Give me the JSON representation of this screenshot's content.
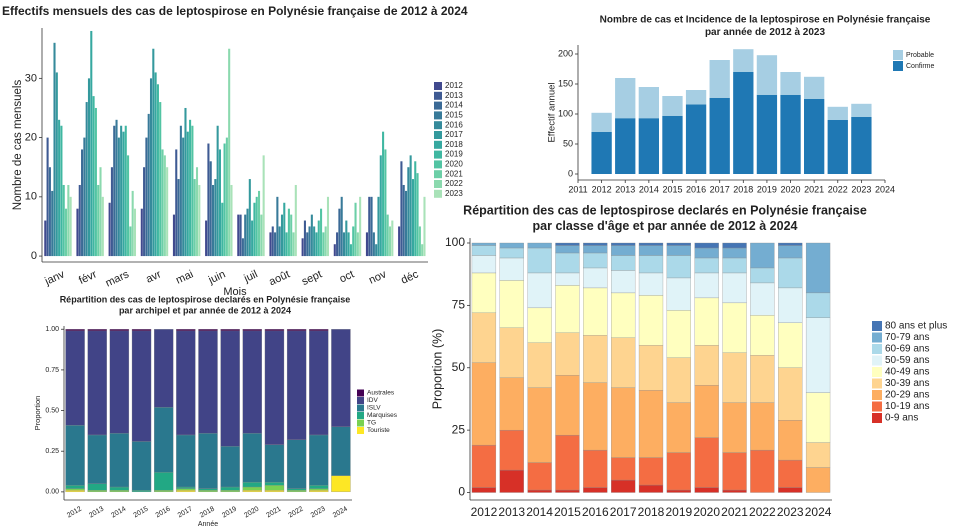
{
  "chart_data": [
    {
      "type": "bar",
      "title": "Effectifs mensuels des cas de leptospirose en Polynésie française de 2012 à 2024",
      "x_label": "Mois",
      "y_label": "Nombre de cas mensuels",
      "categories": [
        "janv",
        "févr",
        "mars",
        "avr",
        "mai",
        "juin",
        "juil",
        "août",
        "sept",
        "oct",
        "nov",
        "déc"
      ],
      "series": [
        {
          "name": "2012",
          "color": "#40498e",
          "values": [
            6,
            8,
            9,
            8,
            7,
            6,
            7,
            4,
            3,
            2,
            4,
            5
          ]
        },
        {
          "name": "2013",
          "color": "#3e5a93",
          "values": [
            20,
            12,
            15,
            15,
            18,
            19,
            7,
            5,
            6,
            4,
            10,
            16
          ]
        },
        {
          "name": "2014",
          "color": "#3b6a96",
          "values": [
            15,
            18,
            22,
            20,
            13,
            16,
            3,
            4,
            4,
            8,
            10,
            12
          ]
        },
        {
          "name": "2015",
          "color": "#387a99",
          "values": [
            11,
            20,
            23,
            24,
            22,
            12,
            7,
            10,
            5,
            10,
            4,
            11
          ]
        },
        {
          "name": "2016",
          "color": "#358a9b",
          "values": [
            36,
            26,
            20,
            30,
            20,
            13,
            8,
            5,
            7,
            4,
            2,
            15
          ]
        },
        {
          "name": "2017",
          "color": "#34999d",
          "values": [
            31,
            30,
            22,
            35,
            25,
            22,
            13,
            7,
            5,
            6,
            10,
            17
          ]
        },
        {
          "name": "2018",
          "color": "#36a8a0",
          "values": [
            23,
            38,
            21,
            31,
            21,
            18,
            6,
            9,
            4,
            4,
            17,
            13
          ]
        },
        {
          "name": "2019",
          "color": "#3fb7a1",
          "values": [
            22,
            27,
            22,
            29,
            23,
            9,
            9,
            4,
            6,
            2,
            21,
            16
          ]
        },
        {
          "name": "2020",
          "color": "#52c4a3",
          "values": [
            12,
            25,
            17,
            26,
            22,
            19,
            10,
            8,
            8,
            5,
            18,
            14
          ]
        },
        {
          "name": "2021",
          "color": "#6ccfa7",
          "values": [
            8,
            12,
            5,
            18,
            13,
            20,
            11,
            7,
            4,
            9,
            7,
            5
          ]
        },
        {
          "name": "2022",
          "color": "#8bd9ae",
          "values": [
            12,
            15,
            11,
            17,
            15,
            35,
            7,
            4,
            5,
            4,
            5,
            2
          ]
        },
        {
          "name": "2023",
          "color": "#a9e2b8",
          "values": [
            10,
            10,
            8,
            15,
            12,
            12,
            17,
            12,
            10,
            10,
            6,
            10
          ]
        }
      ],
      "ylim": [
        -1,
        38.5
      ],
      "yticks": [
        0,
        10,
        20,
        30
      ],
      "grid": false,
      "legend": "right"
    },
    {
      "type": "stacked_bar",
      "title": "Nombre de cas et Incidence de la leptospirose en Polynésie française",
      "subtitle": "par année de 2012 à 2023",
      "y_label": "Effectif annuel",
      "x": [
        2012,
        2013,
        2014,
        2015,
        2016,
        2017,
        2018,
        2019,
        2020,
        2021,
        2022,
        2023
      ],
      "series": [
        {
          "name": "Confirme",
          "color": "#1f78b4",
          "values": [
            70,
            93,
            93,
            97,
            116,
            127,
            170,
            132,
            132,
            125,
            90,
            95
          ]
        },
        {
          "name": "Probable",
          "color": "#a6cee3",
          "values": [
            32,
            67,
            52,
            33,
            24,
            63,
            38,
            66,
            38,
            37,
            22,
            22
          ]
        }
      ],
      "xlim": [
        2011,
        2024
      ],
      "xticks": [
        2011,
        2012,
        2013,
        2014,
        2015,
        2016,
        2017,
        2018,
        2019,
        2020,
        2021,
        2022,
        2023,
        2024
      ],
      "ylim": [
        -10,
        215
      ],
      "yticks": [
        0,
        50,
        100,
        150,
        200
      ],
      "grid": false,
      "legend": "top-right"
    },
    {
      "type": "stacked_bar",
      "title": "Répartition des cas de leptospirose declarés en Polynésie française",
      "subtitle": "par archipel et par année de 2012 à 2024",
      "x_label": "Année",
      "y_label": "Proportion",
      "categories": [
        "2012",
        "2013",
        "2014",
        "2015",
        "2016",
        "2017",
        "2018",
        "2019",
        "2020",
        "2021",
        "2022",
        "2023",
        "2024"
      ],
      "series": [
        {
          "name": "Touriste",
          "color": "#fde725",
          "values": [
            0.01,
            0,
            0,
            0,
            0,
            0.01,
            0,
            0,
            0.01,
            0.01,
            0,
            0.01,
            0.1
          ]
        },
        {
          "name": "TG",
          "color": "#7ad151",
          "values": [
            0.01,
            0.01,
            0.01,
            0,
            0.01,
            0.01,
            0.01,
            0.01,
            0.02,
            0.03,
            0.01,
            0.01,
            0
          ]
        },
        {
          "name": "Marquises",
          "color": "#22a884",
          "values": [
            0.02,
            0.04,
            0.02,
            0.01,
            0.11,
            0.01,
            0.01,
            0.02,
            0.03,
            0.02,
            0.01,
            0.02,
            0
          ]
        },
        {
          "name": "ISLV",
          "color": "#2a788e",
          "values": [
            0.37,
            0.3,
            0.33,
            0.3,
            0.4,
            0.32,
            0.34,
            0.25,
            0.3,
            0.23,
            0.3,
            0.31,
            0.3
          ]
        },
        {
          "name": "IDV",
          "color": "#414487",
          "values": [
            0.58,
            0.64,
            0.63,
            0.68,
            0.48,
            0.64,
            0.63,
            0.71,
            0.63,
            0.7,
            0.67,
            0.64,
            0.6
          ]
        },
        {
          "name": "Australes",
          "color": "#440154",
          "values": [
            0.01,
            0.01,
            0.01,
            0.01,
            0,
            0.01,
            0.01,
            0.01,
            0.01,
            0.01,
            0.01,
            0.01,
            0
          ]
        }
      ],
      "ylim": [
        -0.05,
        1.02
      ],
      "yticks": [
        {
          "value": 0,
          "label": "0.00"
        },
        {
          "value": 0.25,
          "label": "0.25"
        },
        {
          "value": 0.5,
          "label": "0.50"
        },
        {
          "value": 0.75,
          "label": "0.75"
        },
        {
          "value": 1,
          "label": "1.00"
        }
      ],
      "grid": false,
      "legend": "right"
    },
    {
      "type": "stacked_bar",
      "title": "Répartition des cas de leptospirose declarés en Polynésie française",
      "subtitle": "par classe d'âge et par année de 2012 à 2024",
      "y_label": "Proportion (%)",
      "categories": [
        "2012",
        "2013",
        "2014",
        "2015",
        "2016",
        "2017",
        "2018",
        "2019",
        "2020",
        "2021",
        "2022",
        "2023",
        "2024"
      ],
      "series": [
        {
          "name": "0-9 ans",
          "color": "#d73027",
          "values": [
            2,
            9,
            1,
            1,
            2,
            5,
            3,
            1,
            2,
            1,
            0,
            2,
            0
          ]
        },
        {
          "name": "10-19 ans",
          "color": "#f46d43",
          "values": [
            17,
            16,
            11,
            22,
            15,
            9,
            11,
            15,
            20,
            15,
            17,
            11,
            0
          ]
        },
        {
          "name": "20-29 ans",
          "color": "#fdae61",
          "values": [
            33,
            21,
            30,
            24,
            27,
            28,
            27,
            20,
            21,
            20,
            19,
            16,
            10
          ]
        },
        {
          "name": "30-39 ans",
          "color": "#fed490",
          "values": [
            20,
            20,
            18,
            17,
            19,
            20,
            18,
            18,
            16,
            20,
            19,
            21,
            10
          ]
        },
        {
          "name": "40-49 ans",
          "color": "#ffffbf",
          "values": [
            16,
            19,
            14,
            19,
            19,
            18,
            20,
            19,
            19,
            20,
            16,
            18,
            20
          ]
        },
        {
          "name": "50-59 ans",
          "color": "#e0f3f8",
          "values": [
            7,
            9,
            14,
            5,
            8,
            9,
            9,
            13,
            10,
            12,
            13,
            14,
            30
          ]
        },
        {
          "name": "60-69 ans",
          "color": "#abd9e9",
          "values": [
            4,
            4,
            10,
            8,
            6,
            6,
            7,
            9,
            6,
            6,
            6,
            12,
            10
          ]
        },
        {
          "name": "70-79 ans",
          "color": "#74add1",
          "values": [
            1,
            2,
            2,
            3,
            3,
            4,
            4,
            4,
            4,
            4,
            10,
            5,
            20
          ]
        },
        {
          "name": "80 ans et plus",
          "color": "#4575b4",
          "values": [
            0,
            0,
            0,
            1,
            1,
            1,
            1,
            1,
            2,
            2,
            0,
            1,
            0
          ]
        }
      ],
      "ylim": [
        -3,
        102
      ],
      "yticks": [
        0,
        25,
        50,
        75,
        100
      ],
      "grid": false,
      "legend": "right"
    }
  ]
}
